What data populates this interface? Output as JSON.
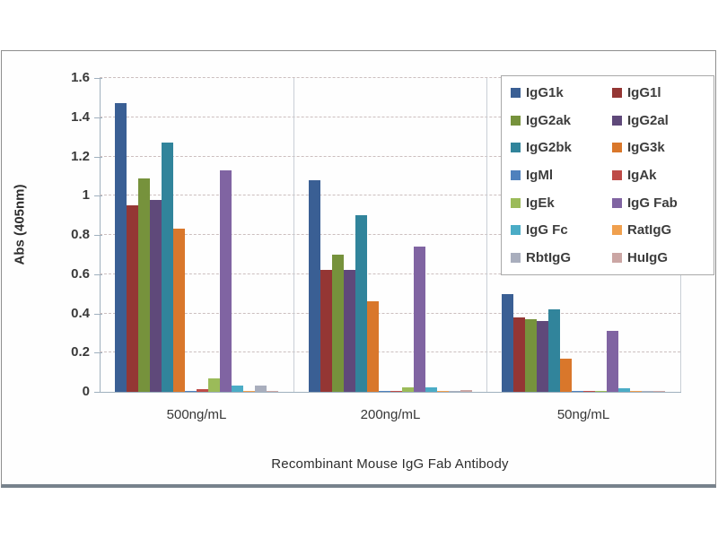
{
  "chart_data": {
    "type": "bar",
    "title": "Recombinant Mouse IgG Fab Antibody",
    "ylabel": "Abs (405nm)",
    "categories": [
      "500ng/mL",
      "200ng/mL",
      "50ng/mL"
    ],
    "ylim": [
      0,
      1.6
    ],
    "ytick_step": 0.2,
    "yticks": [
      "0",
      "0.2",
      "0.4",
      "0.6",
      "0.8",
      "1",
      "1.2",
      "1.4",
      "1.6"
    ],
    "grid": "horizontal dashed gridlines every 0.2; light vertical category separators",
    "legend_position": "top-right inside plot, 2 columns, bordered white box",
    "series": [
      {
        "name": "IgG1k",
        "color": "#3a5f94",
        "values": [
          1.47,
          1.08,
          0.5
        ]
      },
      {
        "name": "IgG1l",
        "color": "#943634",
        "values": [
          0.95,
          0.62,
          0.38
        ]
      },
      {
        "name": "IgG2ak",
        "color": "#76923c",
        "values": [
          1.09,
          0.7,
          0.37
        ]
      },
      {
        "name": "IgG2al",
        "color": "#5f497a",
        "values": [
          0.98,
          0.62,
          0.36
        ]
      },
      {
        "name": "IgG2bk",
        "color": "#31849b",
        "values": [
          1.27,
          0.9,
          0.42
        ]
      },
      {
        "name": "IgG3k",
        "color": "#d9772b",
        "values": [
          0.83,
          0.46,
          0.17
        ]
      },
      {
        "name": "IgMl",
        "color": "#4f81bd",
        "values": [
          0.005,
          0.005,
          0.004
        ]
      },
      {
        "name": "IgAk",
        "color": "#be4b48",
        "values": [
          0.012,
          0.006,
          0.005
        ]
      },
      {
        "name": "IgEk",
        "color": "#9bbb59",
        "values": [
          0.07,
          0.025,
          0.005
        ]
      },
      {
        "name": "IgG Fab",
        "color": "#8064a2",
        "values": [
          1.13,
          0.74,
          0.31
        ]
      },
      {
        "name": "IgG Fc",
        "color": "#4bacc6",
        "values": [
          0.03,
          0.025,
          0.02
        ]
      },
      {
        "name": "RatIgG",
        "color": "#f0a04e",
        "values": [
          0.005,
          0.004,
          0.003
        ]
      },
      {
        "name": "RbtIgG",
        "color": "#a9aebd",
        "values": [
          0.03,
          0.006,
          0.003
        ]
      },
      {
        "name": "HuIgG",
        "color": "#cba6a4",
        "values": [
          0.005,
          0.01,
          0.003
        ]
      }
    ]
  },
  "colors": {
    "axis": "#9fb0be",
    "gridline": "#ccbfbf",
    "separator": "#c9cfd6",
    "frame_border": "#8e8e8e",
    "frame_bottom_edge": "#77828c",
    "tick_text": "#3a3a3a"
  }
}
